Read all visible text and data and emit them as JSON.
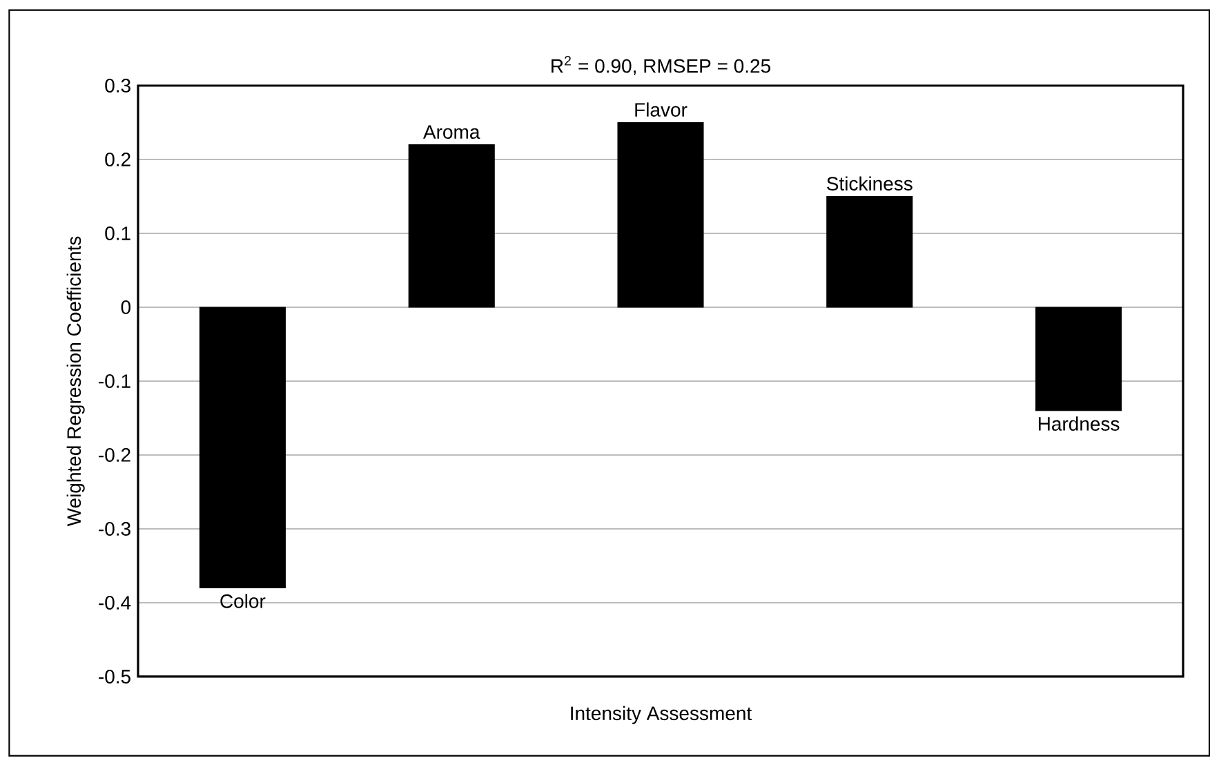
{
  "chart_data": {
    "type": "bar",
    "title": "R$^{2}$ = 0.90, RMSEP = 0.25",
    "xlabel": "Intensity Assessment",
    "ylabel": "Weighted Regression Coefficients",
    "categories": [
      "Color",
      "Aroma",
      "Flavor",
      "Stickiness",
      "Hardness"
    ],
    "values": [
      -0.38,
      0.22,
      0.25,
      0.15,
      -0.14
    ],
    "color": "#000000",
    "ylim": [
      -0.5,
      0.3
    ],
    "yticks": [
      -0.5,
      -0.4,
      -0.3,
      -0.2,
      -0.1,
      0,
      0.1,
      0.2,
      0.3
    ],
    "grid": "y",
    "tick_labels": "y"
  }
}
